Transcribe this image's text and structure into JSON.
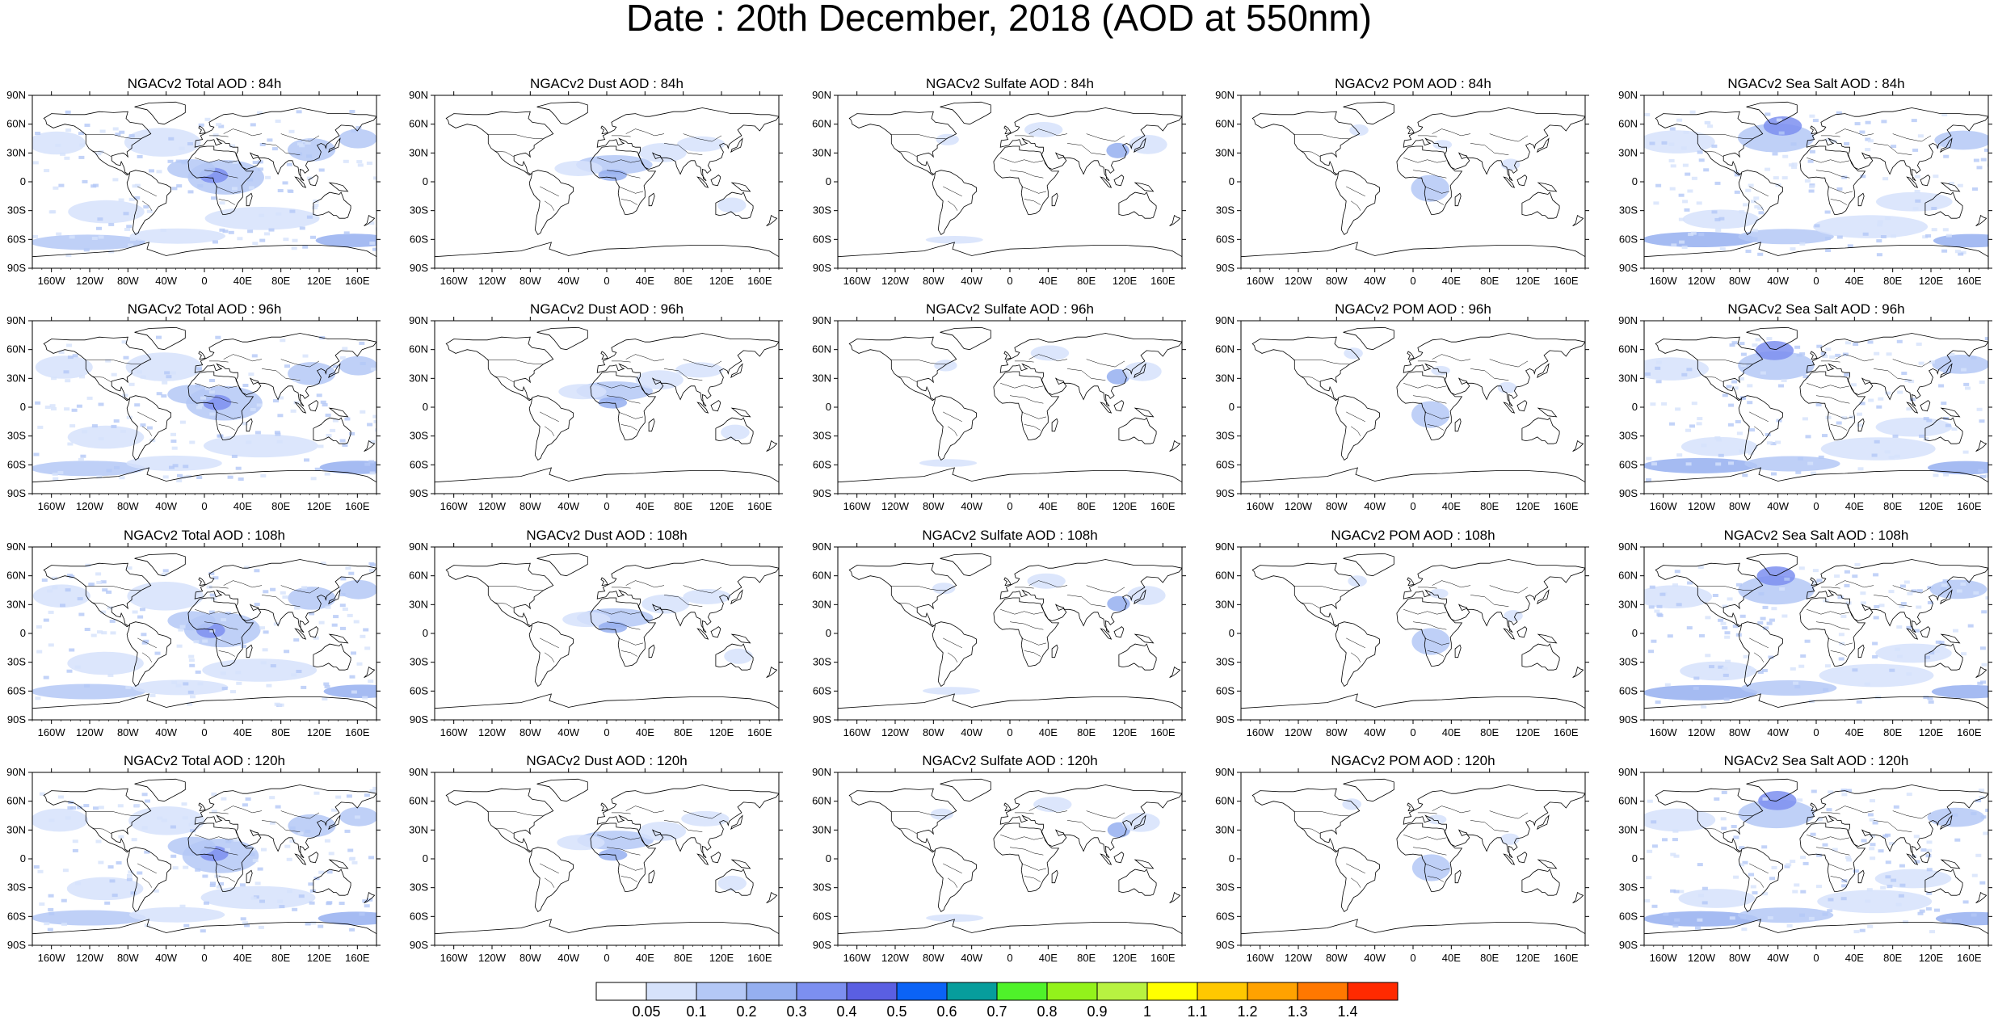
{
  "title": "Date : 20th December, 2018 (AOD at 550nm)",
  "lon_labels": [
    "160W",
    "120W",
    "80W",
    "40W",
    "0",
    "40E",
    "80E",
    "120E",
    "160E"
  ],
  "lat_labels": [
    "90N",
    "60N",
    "30N",
    "0",
    "30S",
    "60S",
    "90S"
  ],
  "rows": [
    {
      "lead": "84h",
      "panels": [
        "NGACv2 Total AOD : 84h",
        "NGACv2 Dust AOD : 84h",
        "NGACv2 Sulfate AOD : 84h",
        "NGACv2 POM AOD : 84h",
        "NGACv2 Sea Salt AOD : 84h"
      ]
    },
    {
      "lead": "96h",
      "panels": [
        "NGACv2 Total AOD : 96h",
        "NGACv2 Dust AOD : 96h",
        "NGACv2 Sulfate AOD : 96h",
        "NGACv2 POM AOD : 96h",
        "NGACv2 Sea Salt AOD : 96h"
      ]
    },
    {
      "lead": "108h",
      "panels": [
        "NGACv2 Total AOD : 108h",
        "NGACv2 Dust AOD : 108h",
        "NGACv2 Sulfate AOD : 108h",
        "NGACv2 POM AOD : 108h",
        "NGACv2 Sea Salt AOD : 108h"
      ]
    },
    {
      "lead": "120h",
      "panels": [
        "NGACv2 Total AOD : 120h",
        "NGACv2 Dust AOD : 120h",
        "NGACv2 Sulfate AOD : 120h",
        "NGACv2 POM AOD : 120h",
        "NGACv2 Sea Salt  AOD : 120h"
      ]
    }
  ],
  "colorbar": {
    "levels": [
      "0.05",
      "0.1",
      "0.2",
      "0.3",
      "0.4",
      "0.5",
      "0.6",
      "0.7",
      "0.8",
      "0.9",
      "1",
      "1.1",
      "1.2",
      "1.3",
      "1.4"
    ],
    "colors": [
      "#ffffff",
      "#d6e2fb",
      "#b4c8f6",
      "#95aff0",
      "#7c8ff0",
      "#5a5fe2",
      "#0b63f6",
      "#079d9c",
      "#4ff22a",
      "#93f21b",
      "#b8f241",
      "#ffff00",
      "#ffc800",
      "#ffa200",
      "#ff7800",
      "#ff2a00"
    ]
  }
}
